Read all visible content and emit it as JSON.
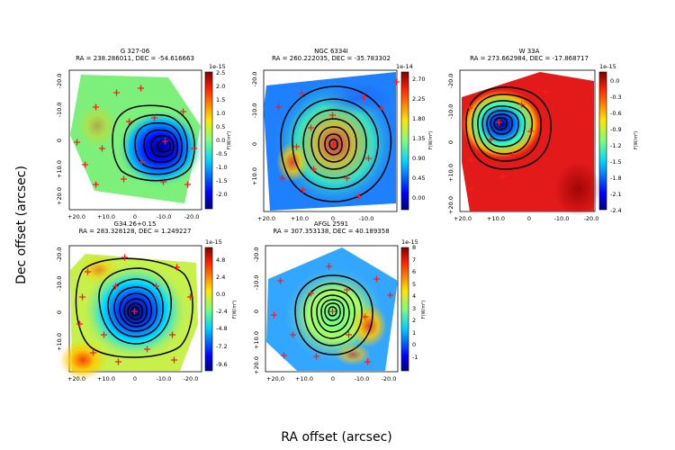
{
  "figure": {
    "xlabel": "RA offset (arcsec)",
    "ylabel": "Dec offset (arcsec)",
    "colorbar_label": "F(W/m²)"
  },
  "chart_data": [
    {
      "type": "heatmap",
      "title_line1": "G 327-06",
      "title_line2": "RA = 238.286011, DEC = -54.616663",
      "colorbar_exponent": "1e-15",
      "colorbar_ticks": [
        "2.5",
        "2.0",
        "1.5",
        "1.0",
        "0.5",
        "0.0",
        "-0.5",
        "-1.0",
        "-1.5",
        "-2.0"
      ],
      "colorbar_range": [
        -2.3,
        2.7
      ],
      "x_ticks": [
        "+20.0",
        "+10.0",
        "0",
        "-10.0",
        "-20.0"
      ],
      "y_ticks": [
        "-20.0",
        "-10.0",
        "0",
        "+10.0",
        "+20.0"
      ],
      "peak_offset_arcsec": [
        -11,
        2
      ],
      "base_color": "#7cf07a",
      "markers": 16
    },
    {
      "type": "heatmap",
      "title_line1": "NGC 6334I",
      "title_line2": "RA = 260.222035, DEC = -35.783302",
      "colorbar_exponent": "1e-14",
      "colorbar_ticks": [
        "2.70",
        "2.25",
        "1.80",
        "1.35",
        "0.90",
        "0.45",
        "0.00"
      ],
      "colorbar_range": [
        -0.2,
        2.9
      ],
      "x_ticks": [
        "+20.0",
        "+10.0",
        "0",
        "-10.0"
      ],
      "y_ticks": [
        "-20.0",
        "-10.0",
        "0",
        "+10.0"
      ],
      "peak_offset_arcsec": [
        0,
        0
      ],
      "base_color": "#1e7fff",
      "markers": 15
    },
    {
      "type": "heatmap",
      "title_line1": "W 33A",
      "title_line2": "RA = 273.662984, DEC = -17.868717",
      "colorbar_exponent": "1e-15",
      "colorbar_ticks": [
        "0.0",
        "-0.3",
        "-0.6",
        "-0.9",
        "-1.2",
        "-1.5",
        "-1.8",
        "-2.1",
        "-2.4"
      ],
      "colorbar_range": [
        -2.4,
        0.15
      ],
      "x_ticks": [
        "+20.0",
        "+10.0",
        "0",
        "-10.0",
        "-20.0"
      ],
      "y_ticks": [
        "-20.0",
        "-10.0",
        "0",
        "+10.0",
        "+20.0"
      ],
      "peak_offset_arcsec": [
        10,
        -6
      ],
      "base_color": "#e21a1a",
      "markers": 10
    },
    {
      "type": "heatmap",
      "title_line1": "G34.26+0.15",
      "title_line2": "RA = 283.328128, DEC = 1.249227",
      "colorbar_exponent": "1e-15",
      "colorbar_ticks": [
        "4.8",
        "2.4",
        "0.0",
        "-2.4",
        "-4.8",
        "-7.2",
        "-9.6"
      ],
      "colorbar_range": [
        -10.5,
        6.5
      ],
      "x_ticks": [
        "+20.0",
        "+10.0",
        "0",
        "-10.0",
        "-20.0"
      ],
      "y_ticks": [
        "-20.0",
        "-10.0",
        "0",
        "+10.0"
      ],
      "peak_offset_arcsec": [
        0,
        0
      ],
      "base_color": "#c7f04a",
      "markers": 16
    },
    {
      "type": "heatmap",
      "title_line1": "AFGL 2591",
      "title_line2": "RA = 307.353138, DEC = 40.189358",
      "colorbar_exponent": "1e-15",
      "colorbar_ticks": [
        "8",
        "7",
        "6",
        "5",
        "4",
        "3",
        "2",
        "1",
        "0",
        "-1"
      ],
      "colorbar_range": [
        -1.8,
        8.3
      ],
      "x_ticks": [
        "+20.0",
        "+10.0",
        "0",
        "-10.0",
        "-20.0"
      ],
      "y_ticks": [
        "-20.0",
        "-10.0",
        "0",
        "+10.0",
        "+20.0"
      ],
      "peak_offset_arcsec": [
        0,
        0
      ],
      "base_color": "#33a6ff",
      "markers": 14
    }
  ]
}
